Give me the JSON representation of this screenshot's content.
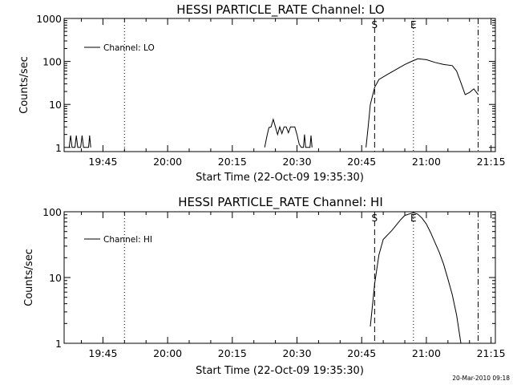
{
  "chart_data": [
    {
      "type": "line",
      "title": "HESSI PARTICLE_RATE Channel: LO",
      "xlabel": "Start Time (22-Oct-09 19:35:30)",
      "ylabel": "Counts/sec",
      "y_scale": "log",
      "ylim": [
        0.8,
        1000
      ],
      "xlim": [
        "19:36",
        "21:16"
      ],
      "x_ticks": [
        "19:45",
        "20:00",
        "20:15",
        "20:30",
        "20:45",
        "21:00",
        "21:15"
      ],
      "y_ticks": [
        "1",
        "10",
        "100",
        "1000"
      ],
      "grid": false,
      "legend": {
        "position": "top-left",
        "entries": [
          "Channel: LO"
        ]
      },
      "vertical_lines": [
        {
          "time": "19:50",
          "style": "dotted",
          "label": ""
        },
        {
          "time": "20:48",
          "style": "dashed",
          "label": "S"
        },
        {
          "time": "20:57",
          "style": "dotted",
          "label": "E"
        },
        {
          "time": "21:12",
          "style": "dashdot",
          "label": ""
        }
      ],
      "series": [
        {
          "name": "Channel: LO",
          "points": [
            [
              "19:37:10",
              1
            ],
            [
              "19:37:30",
              1.9
            ],
            [
              "19:37:50",
              1
            ],
            [
              "19:38:30",
              1
            ],
            [
              "19:38:50",
              1.9
            ],
            [
              "19:39:10",
              1
            ],
            [
              "19:39:50",
              1
            ],
            [
              "19:40:10",
              1.9
            ],
            [
              "19:40:30",
              1
            ],
            [
              "19:41:40",
              1
            ],
            [
              "19:41:55",
              1.9
            ],
            [
              "19:42:10",
              1
            ],
            [
              "20:22:30",
              1
            ],
            [
              "20:23:00",
              1.8
            ],
            [
              "20:23:30",
              2.9
            ],
            [
              "20:24:00",
              3
            ],
            [
              "20:24:30",
              4.5
            ],
            [
              "20:25:00",
              3
            ],
            [
              "20:25:30",
              2
            ],
            [
              "20:26:00",
              3
            ],
            [
              "20:26:30",
              2.1
            ],
            [
              "20:27:00",
              3
            ],
            [
              "20:27:30",
              3
            ],
            [
              "20:28:00",
              2.2
            ],
            [
              "20:28:30",
              3
            ],
            [
              "20:29:00",
              3
            ],
            [
              "20:29:30",
              3
            ],
            [
              "20:30:00",
              2
            ],
            [
              "20:30:30",
              1.2
            ],
            [
              "20:31:00",
              1
            ],
            [
              "20:31:30",
              1
            ],
            [
              "20:31:45",
              2
            ],
            [
              "20:32:00",
              1
            ],
            [
              "20:33:00",
              1
            ],
            [
              "20:33:15",
              1.9
            ],
            [
              "20:33:30",
              1
            ],
            [
              "20:46:00",
              1
            ],
            [
              "20:46:30",
              3
            ],
            [
              "20:47:00",
              10
            ],
            [
              "20:48:00",
              25
            ],
            [
              "20:49:00",
              38
            ],
            [
              "20:51:00",
              50
            ],
            [
              "20:53:00",
              65
            ],
            [
              "20:55:00",
              85
            ],
            [
              "20:57:00",
              105
            ],
            [
              "20:58:00",
              115
            ],
            [
              "21:00:00",
              110
            ],
            [
              "21:02:00",
              95
            ],
            [
              "21:04:00",
              85
            ],
            [
              "21:06:00",
              80
            ],
            [
              "21:07:00",
              60
            ],
            [
              "21:08:00",
              32
            ],
            [
              "21:09:00",
              17
            ],
            [
              "21:10:00",
              19
            ],
            [
              "21:11:00",
              23
            ],
            [
              "21:12:00",
              17
            ]
          ]
        }
      ]
    },
    {
      "type": "line",
      "title": "HESSI PARTICLE_RATE Channel: HI",
      "xlabel": "Start Time (22-Oct-09 19:35:30)",
      "ylabel": "Counts/sec",
      "y_scale": "log",
      "ylim": [
        1,
        100
      ],
      "xlim": [
        "19:36",
        "21:16"
      ],
      "x_ticks": [
        "19:45",
        "20:00",
        "20:15",
        "20:30",
        "20:45",
        "21:00",
        "21:15"
      ],
      "y_ticks": [
        "1",
        "10",
        "100"
      ],
      "grid": false,
      "legend": {
        "position": "top-left",
        "entries": [
          "Channel: HI"
        ]
      },
      "vertical_lines": [
        {
          "time": "19:50",
          "style": "dotted",
          "label": ""
        },
        {
          "time": "20:48",
          "style": "dashed",
          "label": "S"
        },
        {
          "time": "20:57",
          "style": "dotted",
          "label": "E"
        },
        {
          "time": "21:12",
          "style": "dashdot",
          "label": ""
        }
      ],
      "series": [
        {
          "name": "Channel: HI",
          "points": [
            [
              "20:47:00",
              1.8
            ],
            [
              "20:48:00",
              8
            ],
            [
              "20:49:00",
              22
            ],
            [
              "20:50:00",
              38
            ],
            [
              "20:52:00",
              52
            ],
            [
              "20:54:00",
              75
            ],
            [
              "20:55:00",
              88
            ],
            [
              "20:57:00",
              97
            ],
            [
              "20:58:00",
              92
            ],
            [
              "20:59:00",
              80
            ],
            [
              "21:00:00",
              65
            ],
            [
              "21:01:00",
              48
            ],
            [
              "21:02:00",
              34
            ],
            [
              "21:03:00",
              24
            ],
            [
              "21:04:00",
              16
            ],
            [
              "21:05:00",
              9.5
            ],
            [
              "21:06:00",
              5.5
            ],
            [
              "21:07:00",
              2.7
            ],
            [
              "21:08:00",
              1
            ]
          ]
        }
      ]
    }
  ],
  "footer": {
    "timestamp": "20-Mar-2010 09:18"
  }
}
